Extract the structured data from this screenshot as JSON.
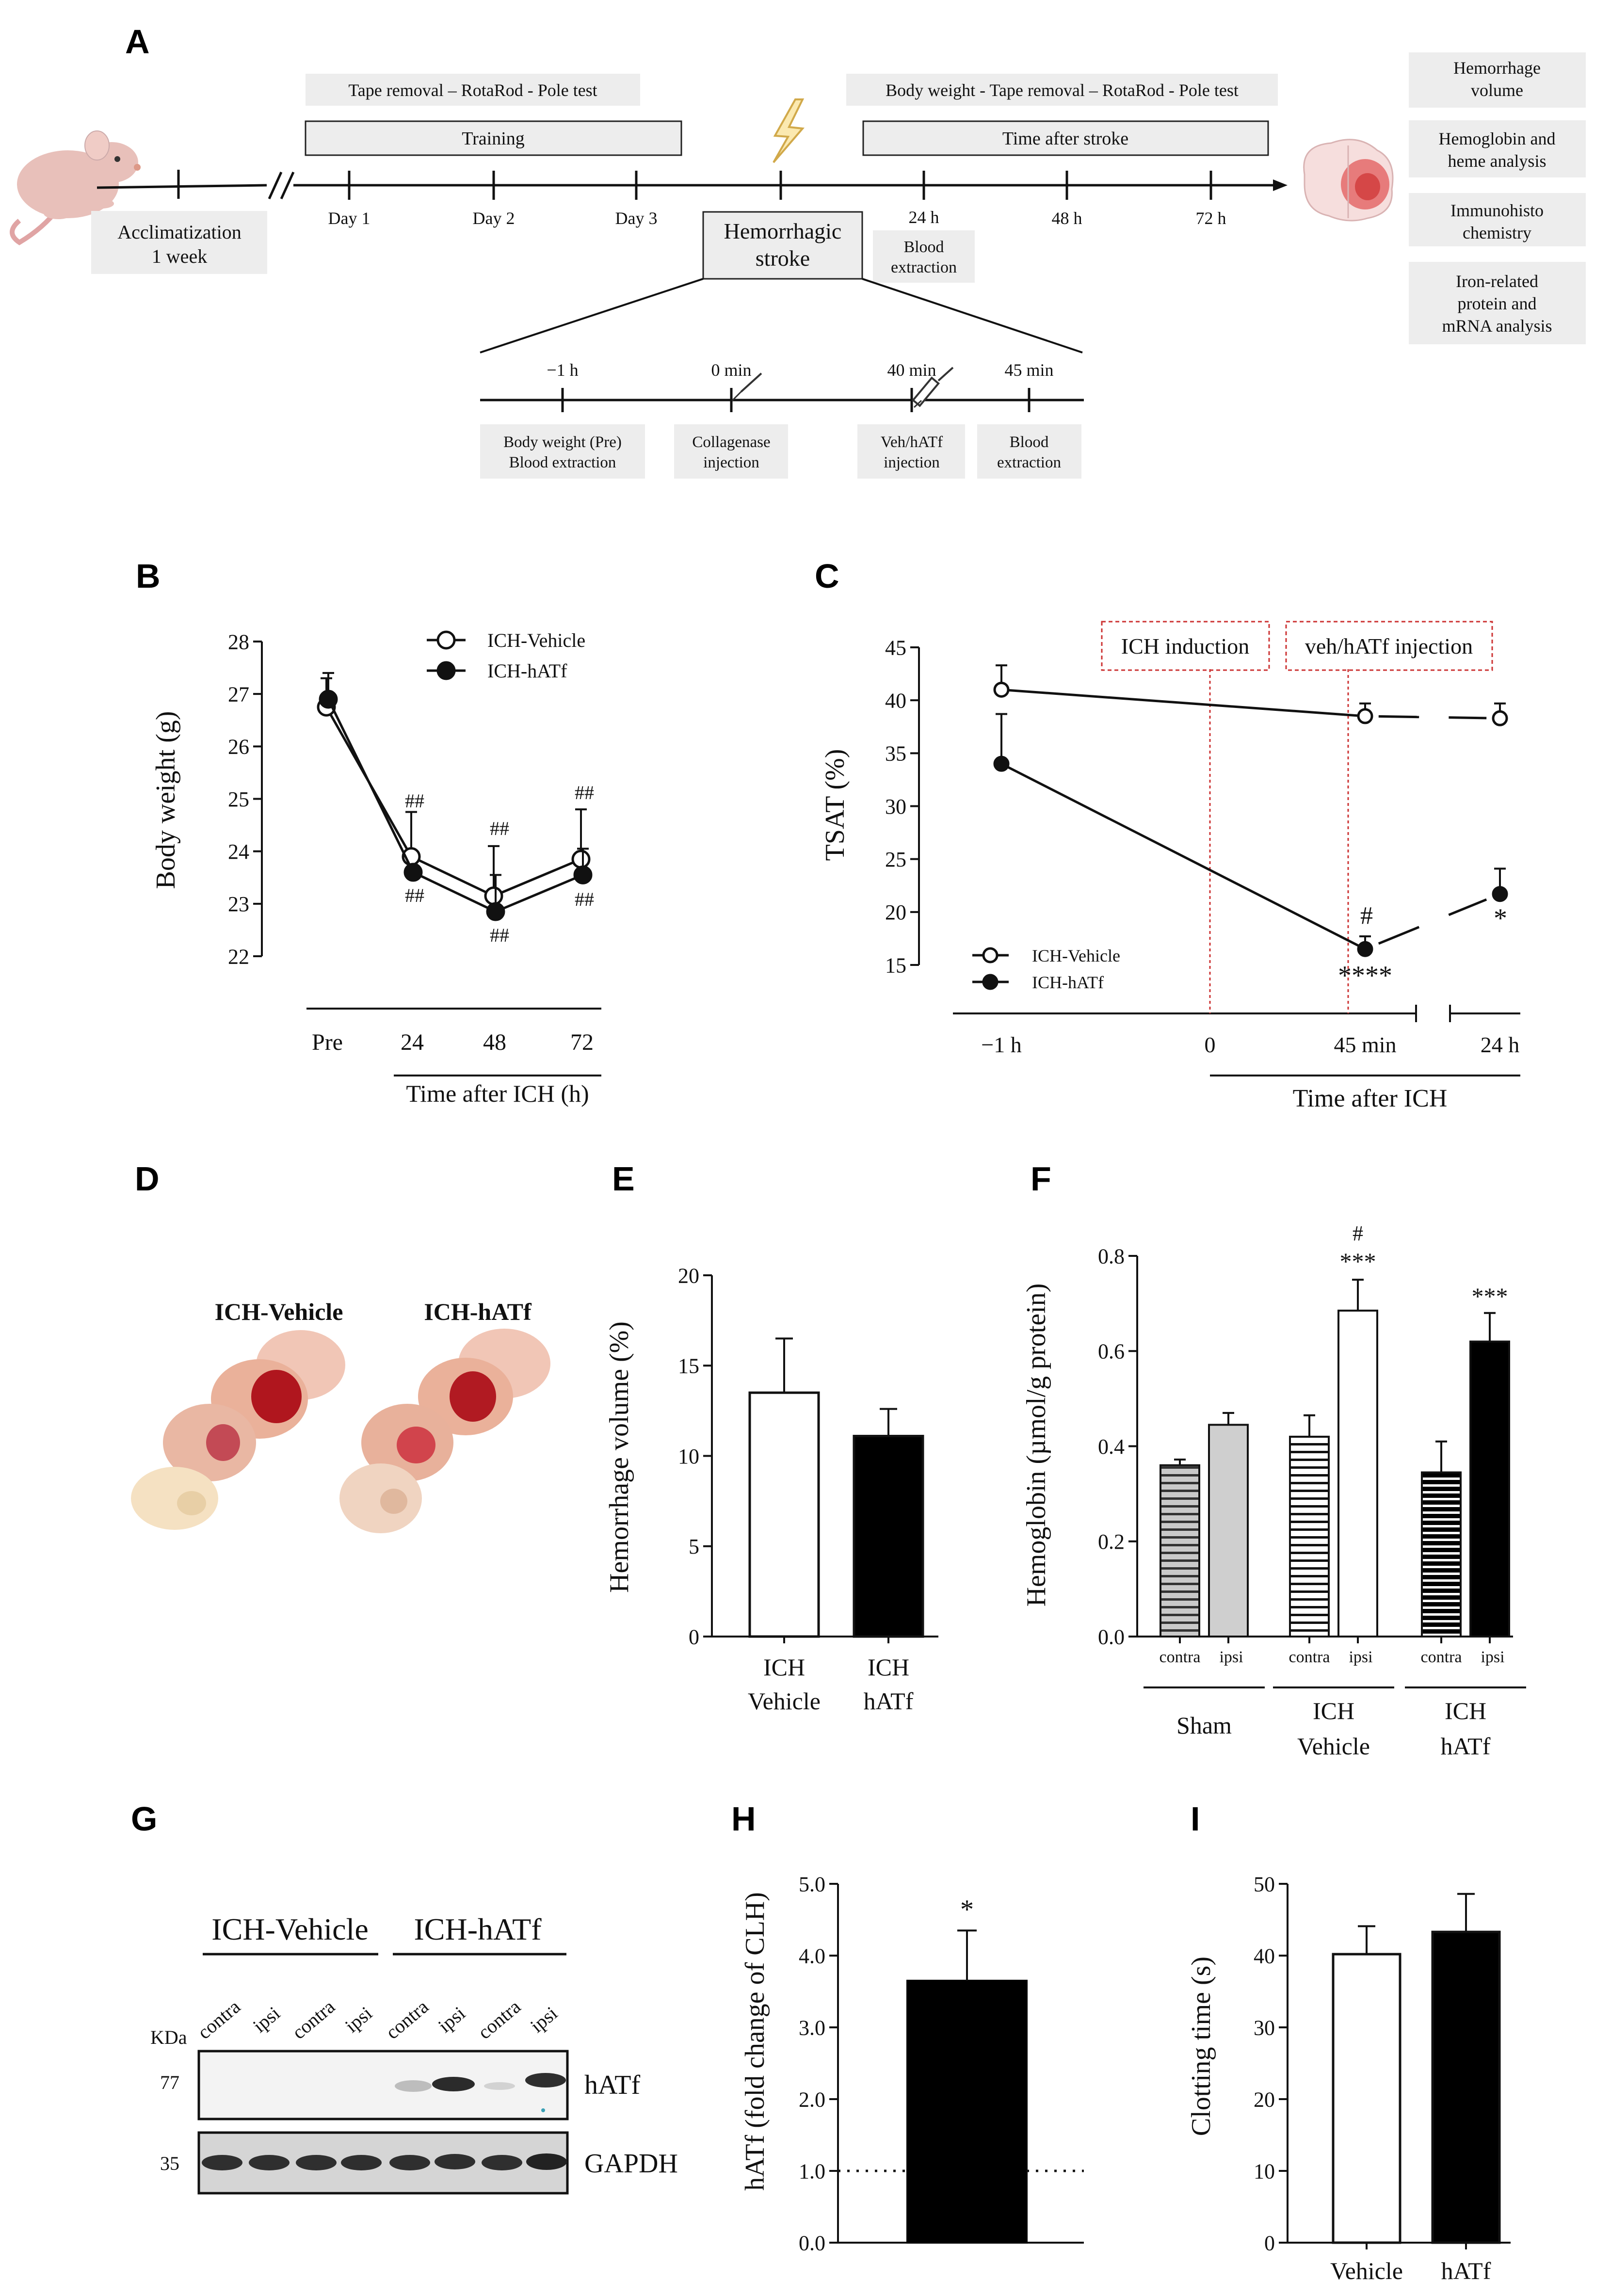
{
  "panels": {
    "A": "A",
    "B": "B",
    "C": "C",
    "D": "D",
    "E": "E",
    "F": "F",
    "G": "G",
    "H": "H",
    "I": "I"
  },
  "timeline": {
    "pre_tests": "Tape removal – RotaRod - Pole test",
    "post_tests": "Body weight - Tape removal – RotaRod - Pole test",
    "training": "Training",
    "time_after_stroke": "Time after stroke",
    "acclimatization": "Acclimatization",
    "acclimatization_dur": "1 week",
    "days": [
      "Day 1",
      "Day 2",
      "Day 3"
    ],
    "hours": [
      "24 h",
      "48 h",
      "72 h"
    ],
    "stroke_l1": "Hemorrhagic",
    "stroke_l2": "stroke",
    "blood24_l1": "Blood",
    "blood24_l2": "extraction",
    "outcomes": [
      [
        "Hemorrhage",
        "volume"
      ],
      [
        "Hemoglobin and",
        "heme analysis"
      ],
      [
        "Immunohisto",
        "chemistry"
      ],
      [
        "Iron-related",
        "protein and",
        "mRNA analysis"
      ]
    ],
    "sub_times": [
      "−1 h",
      "0 min",
      "40 min",
      "45 min"
    ],
    "sub_boxes": [
      [
        "Body weight (Pre)",
        "Blood extraction"
      ],
      [
        "Collagenase",
        "injection"
      ],
      [
        "Veh/hATf",
        "injection"
      ],
      [
        "Blood",
        "extraction"
      ]
    ]
  },
  "chart_data": [
    {
      "id": "B",
      "type": "line",
      "ylabel": "Body weight (g)",
      "xlabel": "Time after ICH (h)",
      "categories": [
        "Pre",
        "24",
        "48",
        "72"
      ],
      "ylim": [
        22,
        28
      ],
      "yticks": [
        "22",
        "23",
        "24",
        "25",
        "26",
        "27",
        "28"
      ],
      "series": [
        {
          "name": "ICH-Vehicle",
          "marker": "open",
          "values": [
            26.75,
            23.9,
            23.15,
            23.85
          ],
          "err": [
            0.55,
            0.85,
            0.95,
            0.95
          ]
        },
        {
          "name": "ICH-hATf",
          "marker": "filled",
          "values": [
            26.9,
            23.6,
            22.85,
            23.55
          ],
          "err": [
            0.5,
            0.0,
            0.7,
            0.5
          ]
        }
      ],
      "annotations": [
        "##",
        "##",
        "##",
        "##",
        "##",
        "##"
      ]
    },
    {
      "id": "C",
      "type": "line",
      "ylabel": "TSAT (%)",
      "xlabel": "Time after ICH",
      "categories": [
        "−1 h",
        "0",
        "45 min",
        "24 h"
      ],
      "ylim": [
        15,
        45
      ],
      "yticks": [
        "15",
        "20",
        "25",
        "30",
        "35",
        "40",
        "45"
      ],
      "series": [
        {
          "name": "ICH-Vehicle",
          "marker": "open",
          "x": [
            "−1 h",
            "45 min",
            "24 h"
          ],
          "values": [
            41,
            38.5,
            38.3
          ],
          "err": [
            2.3,
            1.2,
            1.4
          ]
        },
        {
          "name": "ICH-hATf",
          "marker": "filled",
          "x": [
            "−1 h",
            "45 min",
            "24 h"
          ],
          "values": [
            34,
            16.5,
            21.7
          ],
          "err": [
            4.7,
            1.2,
            2.4
          ]
        }
      ],
      "annotations": {
        "ich_induction": "ICH induction",
        "injection": "veh/hATf injection",
        "hash": "#",
        "stars45": "****",
        "star24": "*"
      }
    },
    {
      "id": "E",
      "type": "bar",
      "ylabel": "Hemorrhage volume (%)",
      "categories": [
        [
          "ICH",
          "Vehicle"
        ],
        [
          "ICH",
          "hATf"
        ]
      ],
      "values": [
        13.5,
        11.1
      ],
      "err": [
        3.0,
        1.5
      ],
      "ylim": [
        0,
        20
      ],
      "yticks": [
        "0",
        "5",
        "10",
        "15",
        "20"
      ],
      "colors": [
        "#ffffff",
        "#000000"
      ]
    },
    {
      "id": "F",
      "type": "bar",
      "ylabel": "Hemoglobin (µmol/g protein)",
      "groups": [
        [
          "Sham"
        ],
        [
          "ICH",
          "Vehicle"
        ],
        [
          "ICH",
          "hATf"
        ]
      ],
      "sub": [
        "contra",
        "ipsi"
      ],
      "values": [
        [
          0.36,
          0.445
        ],
        [
          0.42,
          0.685
        ],
        [
          0.345,
          0.62
        ]
      ],
      "err": [
        [
          0.012,
          0.025
        ],
        [
          0.045,
          0.065
        ],
        [
          0.065,
          0.06
        ]
      ],
      "ylim": [
        0,
        0.8
      ],
      "yticks": [
        "0.0",
        "0.2",
        "0.4",
        "0.6",
        "0.8"
      ],
      "annotations": {
        "hash": "#",
        "stars_vehicle": "***",
        "stars_hatf": "***"
      }
    },
    {
      "id": "H",
      "type": "bar",
      "ylabel": "hATf (fold change of CLH)",
      "values": [
        3.65
      ],
      "err": [
        0.7
      ],
      "reference_line": 1.0,
      "ylim": [
        0,
        5
      ],
      "yticks": [
        "0.0",
        "1.0",
        "2.0",
        "3.0",
        "4.0",
        "5.0"
      ],
      "annotation": "*"
    },
    {
      "id": "I",
      "type": "bar",
      "ylabel": "Clotting time (s)",
      "categories": [
        "Vehicle",
        "hATf"
      ],
      "values": [
        40.2,
        43.3
      ],
      "err": [
        3.9,
        5.3
      ],
      "ylim": [
        0,
        50
      ],
      "yticks": [
        "0",
        "10",
        "20",
        "30",
        "40",
        "50"
      ],
      "colors": [
        "#ffffff",
        "#000000"
      ]
    }
  ],
  "brains": {
    "vehicle_label": "ICH-Vehicle",
    "hatf_label": "ICH-hATf"
  },
  "blot": {
    "group1": "ICH-Vehicle",
    "group2": "ICH-hATf",
    "lanes": [
      "contra",
      "ipsi",
      "contra",
      "ipsi",
      "contra",
      "ipsi",
      "contra",
      "ipsi"
    ],
    "kda": "KDa",
    "mw_top": "77",
    "mw_bottom": "35",
    "band_top": "hATf",
    "band_bottom": "GAPDH"
  }
}
